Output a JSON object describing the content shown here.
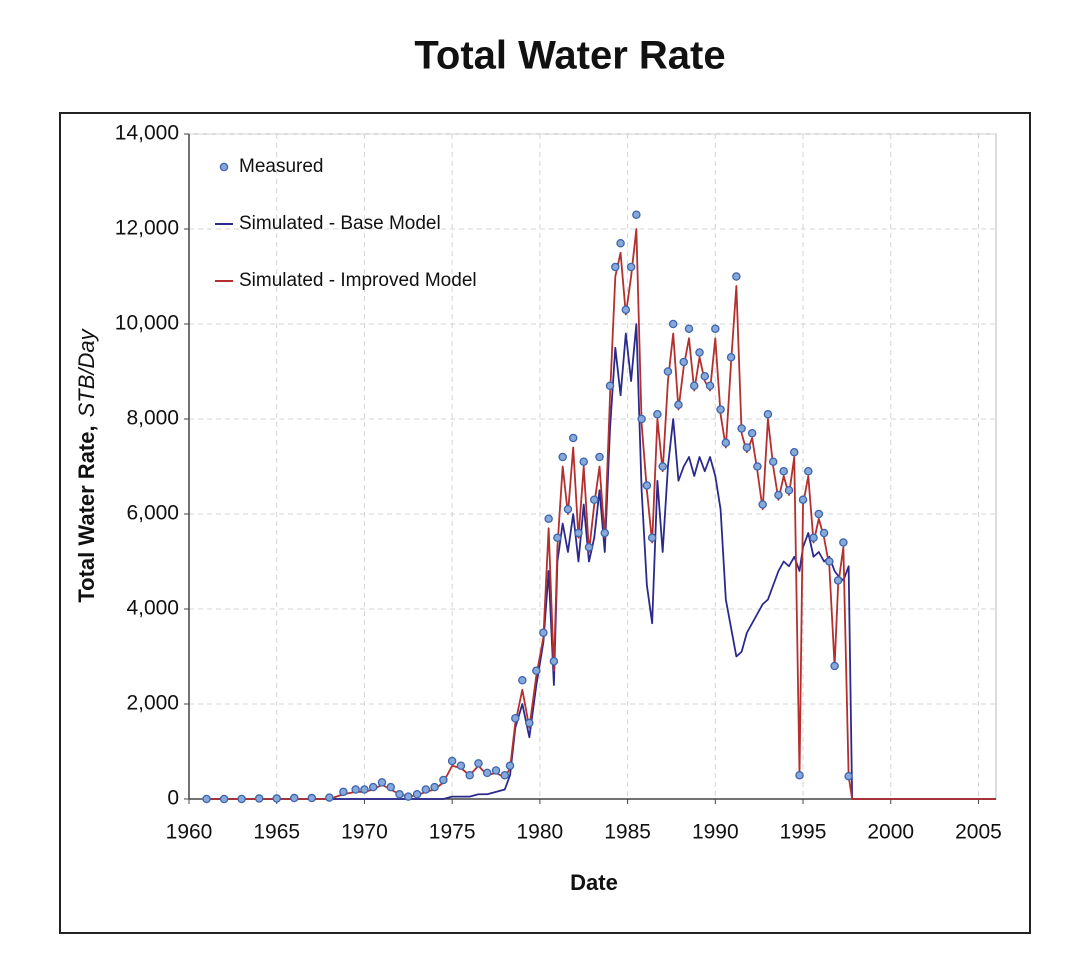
{
  "chart_data": {
    "type": "line",
    "title": "Total Water Rate",
    "x_label": "Date",
    "y_label": "Total Water Rate,",
    "y_label_unit": "STB/Day",
    "xlim": [
      1960,
      2006
    ],
    "xticks": [
      1960,
      1965,
      1970,
      1975,
      1980,
      1985,
      1990,
      1995,
      2000,
      2005
    ],
    "ylim": [
      0,
      14000
    ],
    "yticks": [
      0,
      {
        "value": 2000,
        "label": "2,000"
      },
      {
        "value": 4000,
        "label": "4,000"
      },
      {
        "value": 6000,
        "label": "6,000"
      },
      {
        "value": 8000,
        "label": "8,000"
      },
      {
        "value": 10000,
        "label": "10,000"
      },
      {
        "value": 12000,
        "label": "12,000"
      },
      {
        "value": 14000,
        "label": "14,000"
      }
    ],
    "grid": true,
    "legend": "upper left",
    "x": [
      1961,
      1962,
      1963,
      1964,
      1965,
      1966,
      1967,
      1968,
      1968.8,
      1969.5,
      1970,
      1970.5,
      1971,
      1971.5,
      1972,
      1972.5,
      1973,
      1973.5,
      1974,
      1974.5,
      1975,
      1975.5,
      1976,
      1976.5,
      1977,
      1977.5,
      1978,
      1978.3,
      1978.6,
      1979,
      1979.4,
      1979.8,
      1980.2,
      1980.5,
      1980.8,
      1981,
      1981.3,
      1981.6,
      1981.9,
      1982.2,
      1982.5,
      1982.8,
      1983.1,
      1983.4,
      1983.7,
      1984,
      1984.3,
      1984.6,
      1984.9,
      1985.2,
      1985.5,
      1985.8,
      1986.1,
      1986.4,
      1986.7,
      1987,
      1987.3,
      1987.6,
      1987.9,
      1988.2,
      1988.5,
      1988.8,
      1989.1,
      1989.4,
      1989.7,
      1990,
      1990.3,
      1990.6,
      1990.9,
      1991.2,
      1991.5,
      1991.8,
      1992.1,
      1992.4,
      1992.7,
      1993,
      1993.3,
      1993.6,
      1993.9,
      1994.2,
      1994.5,
      1994.8,
      1995,
      1995.3,
      1995.6,
      1995.9,
      1996.2,
      1996.5,
      1996.8,
      1997,
      1997.3,
      1997.6,
      1997.8,
      2000,
      2006
    ],
    "series": [
      {
        "name": "Measured",
        "mode": "markers",
        "color": "#3d64ad",
        "fill": "#86a9d9",
        "values": [
          0,
          0,
          0,
          10,
          10,
          20,
          20,
          30,
          150,
          200,
          200,
          250,
          350,
          250,
          100,
          50,
          100,
          200,
          250,
          400,
          800,
          700,
          500,
          750,
          550,
          600,
          500,
          700,
          1700,
          2500,
          1600,
          2700,
          3500,
          5900,
          2900,
          5500,
          7200,
          6100,
          7600,
          5600,
          7100,
          5300,
          6300,
          7200,
          5600,
          8700,
          11200,
          11700,
          10300,
          11200,
          12300,
          8000,
          6600,
          5500,
          8100,
          7000,
          9000,
          10000,
          8300,
          9200,
          9900,
          8700,
          9400,
          8900,
          8700,
          9900,
          8200,
          7500,
          9300,
          11000,
          7800,
          7400,
          7700,
          7000,
          6200,
          8100,
          7100,
          6400,
          6900,
          6500,
          7300,
          500,
          6300,
          6900,
          5500,
          6000,
          5600,
          5000,
          2800,
          4600,
          5400,
          480,
          null,
          null,
          null
        ]
      },
      {
        "name": "Simulated - Base Model",
        "mode": "line",
        "color": "#2b2a8c",
        "values": [
          0,
          0,
          0,
          0,
          0,
          0,
          0,
          0,
          0,
          0,
          0,
          0,
          0,
          0,
          0,
          0,
          0,
          0,
          0,
          0,
          50,
          50,
          50,
          100,
          100,
          150,
          200,
          500,
          1500,
          2000,
          1300,
          2400,
          3300,
          4800,
          2400,
          5000,
          5800,
          5200,
          6000,
          5000,
          6200,
          5000,
          5500,
          6500,
          5200,
          7800,
          9500,
          8500,
          9800,
          8800,
          10000,
          6500,
          4500,
          3700,
          6700,
          5200,
          7000,
          8000,
          6700,
          7000,
          7200,
          6800,
          7200,
          6900,
          7200,
          6800,
          6100,
          4200,
          3600,
          3000,
          3100,
          3500,
          3700,
          3900,
          4100,
          4200,
          4500,
          4800,
          5000,
          4900,
          5100,
          4800,
          5300,
          5600,
          5100,
          5200,
          5000,
          5100,
          4800,
          4700,
          4600,
          4900,
          0,
          0,
          0
        ]
      },
      {
        "name": "Simulated - Improved Model",
        "mode": "line",
        "color": "#b3302f",
        "values": [
          0,
          0,
          0,
          0,
          0,
          0,
          0,
          0,
          100,
          150,
          150,
          200,
          300,
          200,
          100,
          50,
          80,
          150,
          200,
          350,
          700,
          650,
          500,
          700,
          500,
          550,
          450,
          650,
          1600,
          2300,
          1500,
          2600,
          3400,
          5700,
          2700,
          5300,
          7000,
          6000,
          7400,
          5500,
          7000,
          5200,
          6200,
          7000,
          5500,
          8500,
          11000,
          11500,
          10200,
          11000,
          12000,
          7900,
          6500,
          5400,
          8000,
          6900,
          8800,
          9800,
          8200,
          9100,
          9700,
          8600,
          9300,
          8800,
          8600,
          9700,
          8100,
          7400,
          9200,
          10800,
          7700,
          7300,
          7600,
          6900,
          6100,
          8000,
          7000,
          6300,
          6800,
          6400,
          7200,
          500,
          6200,
          6800,
          5400,
          5900,
          5500,
          4900,
          2800,
          4500,
          5300,
          480,
          0,
          0,
          0
        ]
      }
    ]
  }
}
